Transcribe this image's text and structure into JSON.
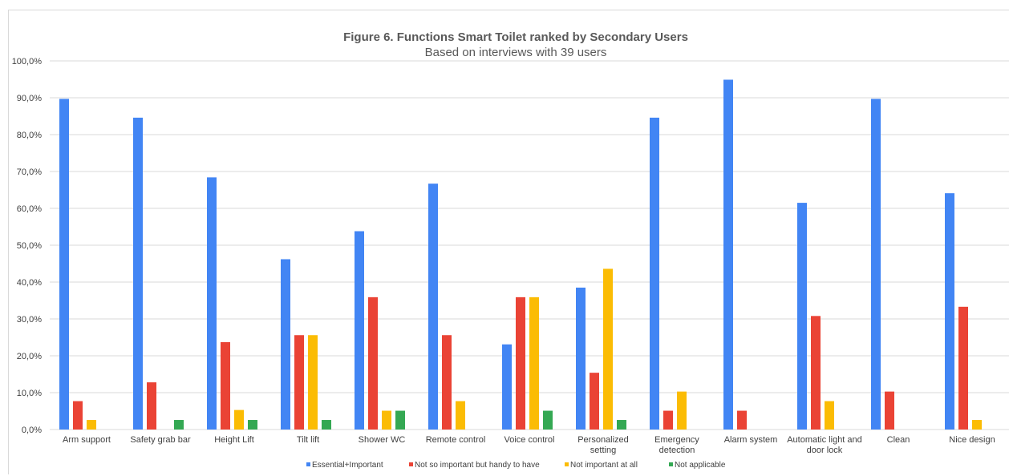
{
  "chart_data": {
    "type": "bar",
    "title": "Figure 6. Functions Smart Toilet ranked by Secondary Users",
    "subtitle": "Based on interviews with 39 users",
    "categories": [
      [
        "Arm support"
      ],
      [
        "Safety grab bar"
      ],
      [
        "Height Lift"
      ],
      [
        "Tilt lift"
      ],
      [
        "Shower WC"
      ],
      [
        "Remote control"
      ],
      [
        "Voice control"
      ],
      [
        "Personalized",
        "setting"
      ],
      [
        "Emergency",
        "detection"
      ],
      [
        "Alarm system"
      ],
      [
        "Automatic light and",
        "door lock"
      ],
      [
        "Clean"
      ],
      [
        "Nice design"
      ]
    ],
    "series": [
      {
        "name": "Essential+Important",
        "color": "#4285F4",
        "values": [
          89.7,
          84.6,
          68.4,
          46.2,
          53.8,
          66.7,
          23.1,
          38.5,
          84.6,
          94.9,
          61.5,
          89.7,
          64.1
        ]
      },
      {
        "name": "Not so important but handy to have",
        "color": "#EA4335",
        "values": [
          7.7,
          12.8,
          23.7,
          25.6,
          35.9,
          25.6,
          35.9,
          15.4,
          5.1,
          5.1,
          30.8,
          10.3,
          33.3
        ]
      },
      {
        "name": "Not important at all",
        "color": "#FBBC04",
        "values": [
          2.6,
          0,
          5.3,
          25.6,
          5.1,
          7.7,
          35.9,
          43.6,
          10.3,
          0,
          7.7,
          0,
          2.6
        ]
      },
      {
        "name": "Not applicable",
        "color": "#34A853",
        "values": [
          0,
          2.6,
          2.6,
          2.6,
          5.1,
          0,
          5.1,
          2.6,
          0,
          0,
          0,
          0,
          0
        ]
      }
    ],
    "ylim": [
      0,
      100
    ],
    "yticks": [
      "0,0%",
      "10,0%",
      "20,0%",
      "30,0%",
      "40,0%",
      "50,0%",
      "60,0%",
      "70,0%",
      "80,0%",
      "90,0%",
      "100,0%"
    ],
    "grid": true,
    "legend_position": "bottom",
    "axis_color": "#d9d9d9",
    "grid_color": "#d9d9d9"
  }
}
